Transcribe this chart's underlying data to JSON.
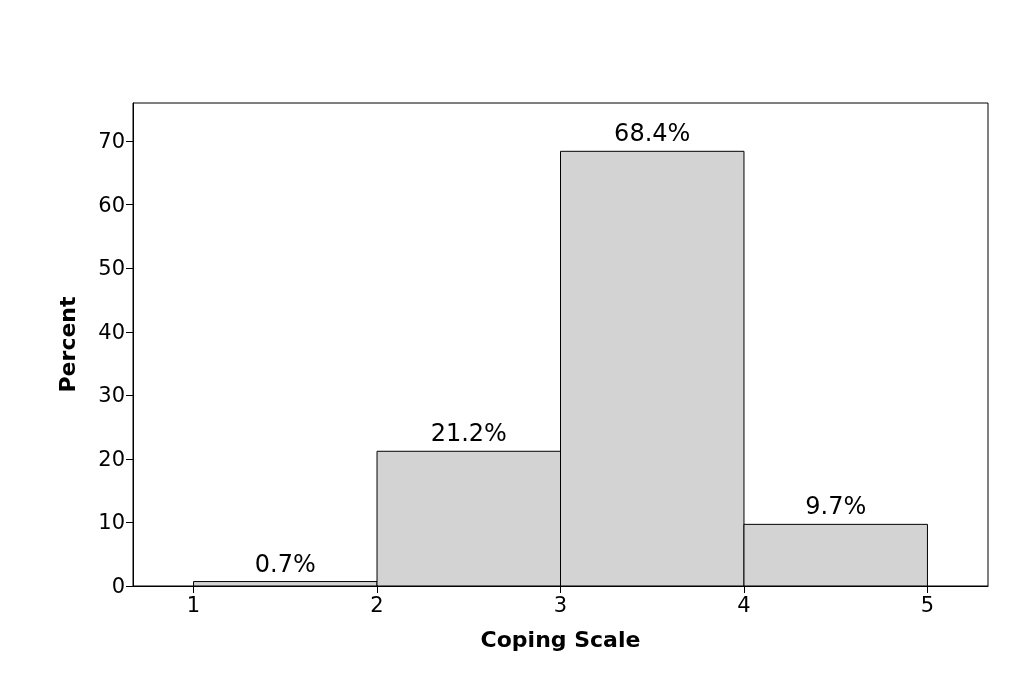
{
  "chart_data": {
    "type": "histogram",
    "xlabel": "Coping Scale",
    "ylabel": "Percent",
    "bins": [
      1,
      2,
      3,
      4,
      5
    ],
    "values": [
      0.7,
      21.2,
      68.4,
      9.7
    ],
    "value_labels": [
      "0.7%",
      "21.2%",
      "68.4%",
      "9.7%"
    ],
    "color": "#d3d3d3",
    "xlim": [
      0.67,
      5.33
    ],
    "xticks": [
      1,
      2,
      3,
      4,
      5
    ],
    "ylim": [
      0,
      76
    ],
    "yticks": [
      0,
      10,
      20,
      30,
      40,
      50,
      60,
      70
    ],
    "grid": false
  }
}
